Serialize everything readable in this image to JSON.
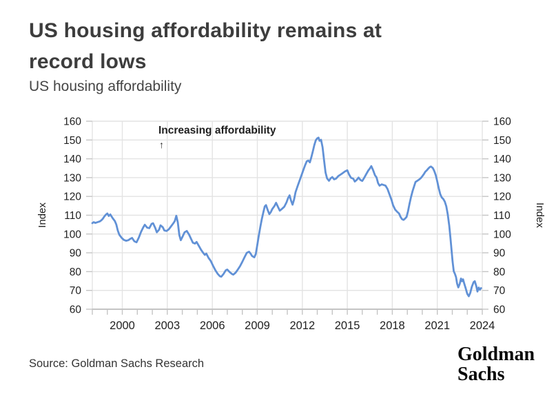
{
  "header": {
    "title_line1": "US housing affordability remains at",
    "title_line2": "record lows",
    "subtitle": "US housing affordability"
  },
  "footer": {
    "source": "Source: Goldman Sachs Research",
    "logo_line1": "Goldman",
    "logo_line2": "Sachs"
  },
  "chart_data": {
    "type": "line",
    "title": "US housing affordability",
    "ylabel": "Index",
    "ylabel_right": "Index",
    "ylim": [
      60,
      160
    ],
    "yticks": [
      60,
      70,
      80,
      90,
      100,
      110,
      120,
      130,
      140,
      150,
      160
    ],
    "xlim": [
      1998,
      2024
    ],
    "xticks": [
      2000,
      2003,
      2006,
      2009,
      2012,
      2015,
      2018,
      2021,
      2024
    ],
    "x_minor_step": 1,
    "grid": "both",
    "legend": "none",
    "annotation": {
      "text": "Increasing affordability",
      "arrow": "↑"
    },
    "colors": {
      "line": "#6191d6",
      "grid": "#e3e3e3",
      "axis": "#c4c4c4",
      "tick_label": "#1f1f1f",
      "background": "#ffffff"
    },
    "series": [
      {
        "name": "US housing affordability",
        "points": [
          [
            1998.0,
            105.8
          ],
          [
            1998.1,
            106.3
          ],
          [
            1998.2,
            105.9
          ],
          [
            1998.35,
            106.3
          ],
          [
            1998.5,
            106.7
          ],
          [
            1998.6,
            107.3
          ],
          [
            1998.7,
            108.1
          ],
          [
            1998.8,
            109.3
          ],
          [
            1998.9,
            110.3
          ],
          [
            1999.0,
            110.9
          ],
          [
            1999.1,
            109.6
          ],
          [
            1999.2,
            110.4
          ],
          [
            1999.35,
            108.5
          ],
          [
            1999.5,
            106.9
          ],
          [
            1999.6,
            105.1
          ],
          [
            1999.7,
            101.8
          ],
          [
            1999.8,
            99.6
          ],
          [
            1999.95,
            98.0
          ],
          [
            2000.1,
            96.9
          ],
          [
            2000.25,
            96.4
          ],
          [
            2000.4,
            96.7
          ],
          [
            2000.55,
            97.5
          ],
          [
            2000.65,
            97.9
          ],
          [
            2000.8,
            96.1
          ],
          [
            2000.95,
            95.6
          ],
          [
            2001.1,
            98.1
          ],
          [
            2001.25,
            101.2
          ],
          [
            2001.4,
            103.6
          ],
          [
            2001.5,
            104.9
          ],
          [
            2001.65,
            103.4
          ],
          [
            2001.8,
            103.1
          ],
          [
            2001.95,
            105.4
          ],
          [
            2002.05,
            105.7
          ],
          [
            2002.2,
            103.2
          ],
          [
            2002.3,
            100.9
          ],
          [
            2002.45,
            102.3
          ],
          [
            2002.55,
            104.6
          ],
          [
            2002.7,
            103.6
          ],
          [
            2002.8,
            101.9
          ],
          [
            2002.95,
            101.6
          ],
          [
            2003.1,
            102.5
          ],
          [
            2003.25,
            104.1
          ],
          [
            2003.4,
            105.7
          ],
          [
            2003.5,
            106.9
          ],
          [
            2003.6,
            109.7
          ],
          [
            2003.7,
            106.1
          ],
          [
            2003.8,
            99.4
          ],
          [
            2003.9,
            96.7
          ],
          [
            2004.0,
            98.3
          ],
          [
            2004.15,
            100.9
          ],
          [
            2004.3,
            101.6
          ],
          [
            2004.45,
            99.7
          ],
          [
            2004.6,
            97.1
          ],
          [
            2004.7,
            95.4
          ],
          [
            2004.85,
            94.9
          ],
          [
            2004.95,
            95.8
          ],
          [
            2005.1,
            93.7
          ],
          [
            2005.25,
            91.6
          ],
          [
            2005.4,
            89.9
          ],
          [
            2005.5,
            88.9
          ],
          [
            2005.6,
            89.6
          ],
          [
            2005.75,
            87.3
          ],
          [
            2005.9,
            85.6
          ],
          [
            2006.05,
            83.1
          ],
          [
            2006.2,
            80.8
          ],
          [
            2006.35,
            78.9
          ],
          [
            2006.5,
            77.6
          ],
          [
            2006.6,
            77.3
          ],
          [
            2006.75,
            78.8
          ],
          [
            2006.9,
            80.7
          ],
          [
            2007.0,
            81.1
          ],
          [
            2007.15,
            79.8
          ],
          [
            2007.3,
            78.8
          ],
          [
            2007.4,
            78.4
          ],
          [
            2007.55,
            79.4
          ],
          [
            2007.7,
            81.1
          ],
          [
            2007.85,
            82.9
          ],
          [
            2008.0,
            85.2
          ],
          [
            2008.15,
            87.7
          ],
          [
            2008.3,
            90.0
          ],
          [
            2008.45,
            90.6
          ],
          [
            2008.55,
            89.6
          ],
          [
            2008.65,
            88.3
          ],
          [
            2008.8,
            87.6
          ],
          [
            2008.9,
            89.4
          ],
          [
            2009.0,
            94.3
          ],
          [
            2009.1,
            99.1
          ],
          [
            2009.2,
            103.7
          ],
          [
            2009.3,
            107.9
          ],
          [
            2009.4,
            111.5
          ],
          [
            2009.5,
            114.7
          ],
          [
            2009.58,
            115.4
          ],
          [
            2009.7,
            112.6
          ],
          [
            2009.8,
            110.6
          ],
          [
            2009.9,
            111.7
          ],
          [
            2010.0,
            113.3
          ],
          [
            2010.15,
            115.0
          ],
          [
            2010.25,
            116.6
          ],
          [
            2010.4,
            114.1
          ],
          [
            2010.5,
            112.4
          ],
          [
            2010.65,
            113.4
          ],
          [
            2010.8,
            114.5
          ],
          [
            2010.95,
            116.9
          ],
          [
            2011.05,
            119.1
          ],
          [
            2011.15,
            120.6
          ],
          [
            2011.25,
            117.8
          ],
          [
            2011.35,
            115.6
          ],
          [
            2011.45,
            118.3
          ],
          [
            2011.55,
            122.3
          ],
          [
            2011.7,
            125.7
          ],
          [
            2011.85,
            129.1
          ],
          [
            2012.0,
            132.5
          ],
          [
            2012.1,
            134.7
          ],
          [
            2012.2,
            136.8
          ],
          [
            2012.3,
            138.7
          ],
          [
            2012.4,
            139.1
          ],
          [
            2012.5,
            138.1
          ],
          [
            2012.6,
            140.7
          ],
          [
            2012.7,
            143.9
          ],
          [
            2012.8,
            147.3
          ],
          [
            2012.9,
            149.9
          ],
          [
            2013.0,
            150.9
          ],
          [
            2013.08,
            151.3
          ],
          [
            2013.15,
            149.6
          ],
          [
            2013.25,
            150.1
          ],
          [
            2013.35,
            146.1
          ],
          [
            2013.45,
            139.4
          ],
          [
            2013.55,
            132.7
          ],
          [
            2013.65,
            129.6
          ],
          [
            2013.78,
            128.3
          ],
          [
            2013.9,
            129.7
          ],
          [
            2014.0,
            130.3
          ],
          [
            2014.12,
            129.1
          ],
          [
            2014.25,
            129.5
          ],
          [
            2014.4,
            130.8
          ],
          [
            2014.55,
            131.6
          ],
          [
            2014.7,
            132.4
          ],
          [
            2014.85,
            133.3
          ],
          [
            2015.0,
            133.9
          ],
          [
            2015.12,
            131.6
          ],
          [
            2015.25,
            129.9
          ],
          [
            2015.4,
            129.4
          ],
          [
            2015.5,
            127.9
          ],
          [
            2015.62,
            128.7
          ],
          [
            2015.75,
            130.0
          ],
          [
            2015.88,
            128.7
          ],
          [
            2016.0,
            128.2
          ],
          [
            2016.12,
            129.8
          ],
          [
            2016.25,
            131.7
          ],
          [
            2016.4,
            133.8
          ],
          [
            2016.5,
            134.8
          ],
          [
            2016.6,
            136.1
          ],
          [
            2016.72,
            134.0
          ],
          [
            2016.85,
            131.2
          ],
          [
            2016.95,
            130.1
          ],
          [
            2017.05,
            127.1
          ],
          [
            2017.15,
            125.7
          ],
          [
            2017.3,
            126.4
          ],
          [
            2017.45,
            126.0
          ],
          [
            2017.55,
            125.7
          ],
          [
            2017.68,
            124.0
          ],
          [
            2017.8,
            121.4
          ],
          [
            2017.95,
            118.1
          ],
          [
            2018.05,
            115.3
          ],
          [
            2018.2,
            112.9
          ],
          [
            2018.35,
            111.6
          ],
          [
            2018.45,
            110.9
          ],
          [
            2018.55,
            109.1
          ],
          [
            2018.65,
            107.9
          ],
          [
            2018.75,
            107.5
          ],
          [
            2018.85,
            108.2
          ],
          [
            2018.95,
            109.1
          ],
          [
            2019.05,
            112.1
          ],
          [
            2019.15,
            116.1
          ],
          [
            2019.25,
            119.7
          ],
          [
            2019.35,
            122.8
          ],
          [
            2019.45,
            125.3
          ],
          [
            2019.55,
            127.7
          ],
          [
            2019.65,
            128.2
          ],
          [
            2019.78,
            128.9
          ],
          [
            2019.9,
            129.7
          ],
          [
            2020.0,
            130.7
          ],
          [
            2020.1,
            131.8
          ],
          [
            2020.2,
            133.1
          ],
          [
            2020.3,
            133.9
          ],
          [
            2020.4,
            134.8
          ],
          [
            2020.5,
            135.6
          ],
          [
            2020.58,
            135.9
          ],
          [
            2020.7,
            135.1
          ],
          [
            2020.8,
            133.5
          ],
          [
            2020.9,
            131.3
          ],
          [
            2021.0,
            127.9
          ],
          [
            2021.1,
            124.2
          ],
          [
            2021.2,
            121.2
          ],
          [
            2021.3,
            119.4
          ],
          [
            2021.4,
            118.6
          ],
          [
            2021.5,
            117.2
          ],
          [
            2021.6,
            114.7
          ],
          [
            2021.7,
            110.4
          ],
          [
            2021.8,
            104.3
          ],
          [
            2021.88,
            97.9
          ],
          [
            2021.95,
            91.4
          ],
          [
            2022.02,
            85.4
          ],
          [
            2022.1,
            80.2
          ],
          [
            2022.17,
            78.9
          ],
          [
            2022.25,
            77.1
          ],
          [
            2022.32,
            73.7
          ],
          [
            2022.4,
            71.6
          ],
          [
            2022.5,
            73.5
          ],
          [
            2022.58,
            76.3
          ],
          [
            2022.65,
            74.9
          ],
          [
            2022.72,
            75.9
          ],
          [
            2022.8,
            73.5
          ],
          [
            2022.9,
            70.9
          ],
          [
            2023.0,
            68.2
          ],
          [
            2023.1,
            66.9
          ],
          [
            2023.2,
            68.7
          ],
          [
            2023.3,
            71.9
          ],
          [
            2023.42,
            74.4
          ],
          [
            2023.5,
            74.9
          ],
          [
            2023.6,
            72.3
          ],
          [
            2023.68,
            69.4
          ],
          [
            2023.76,
            71.5
          ],
          [
            2023.84,
            70.4
          ],
          [
            2023.92,
            71.2
          ]
        ]
      }
    ]
  }
}
